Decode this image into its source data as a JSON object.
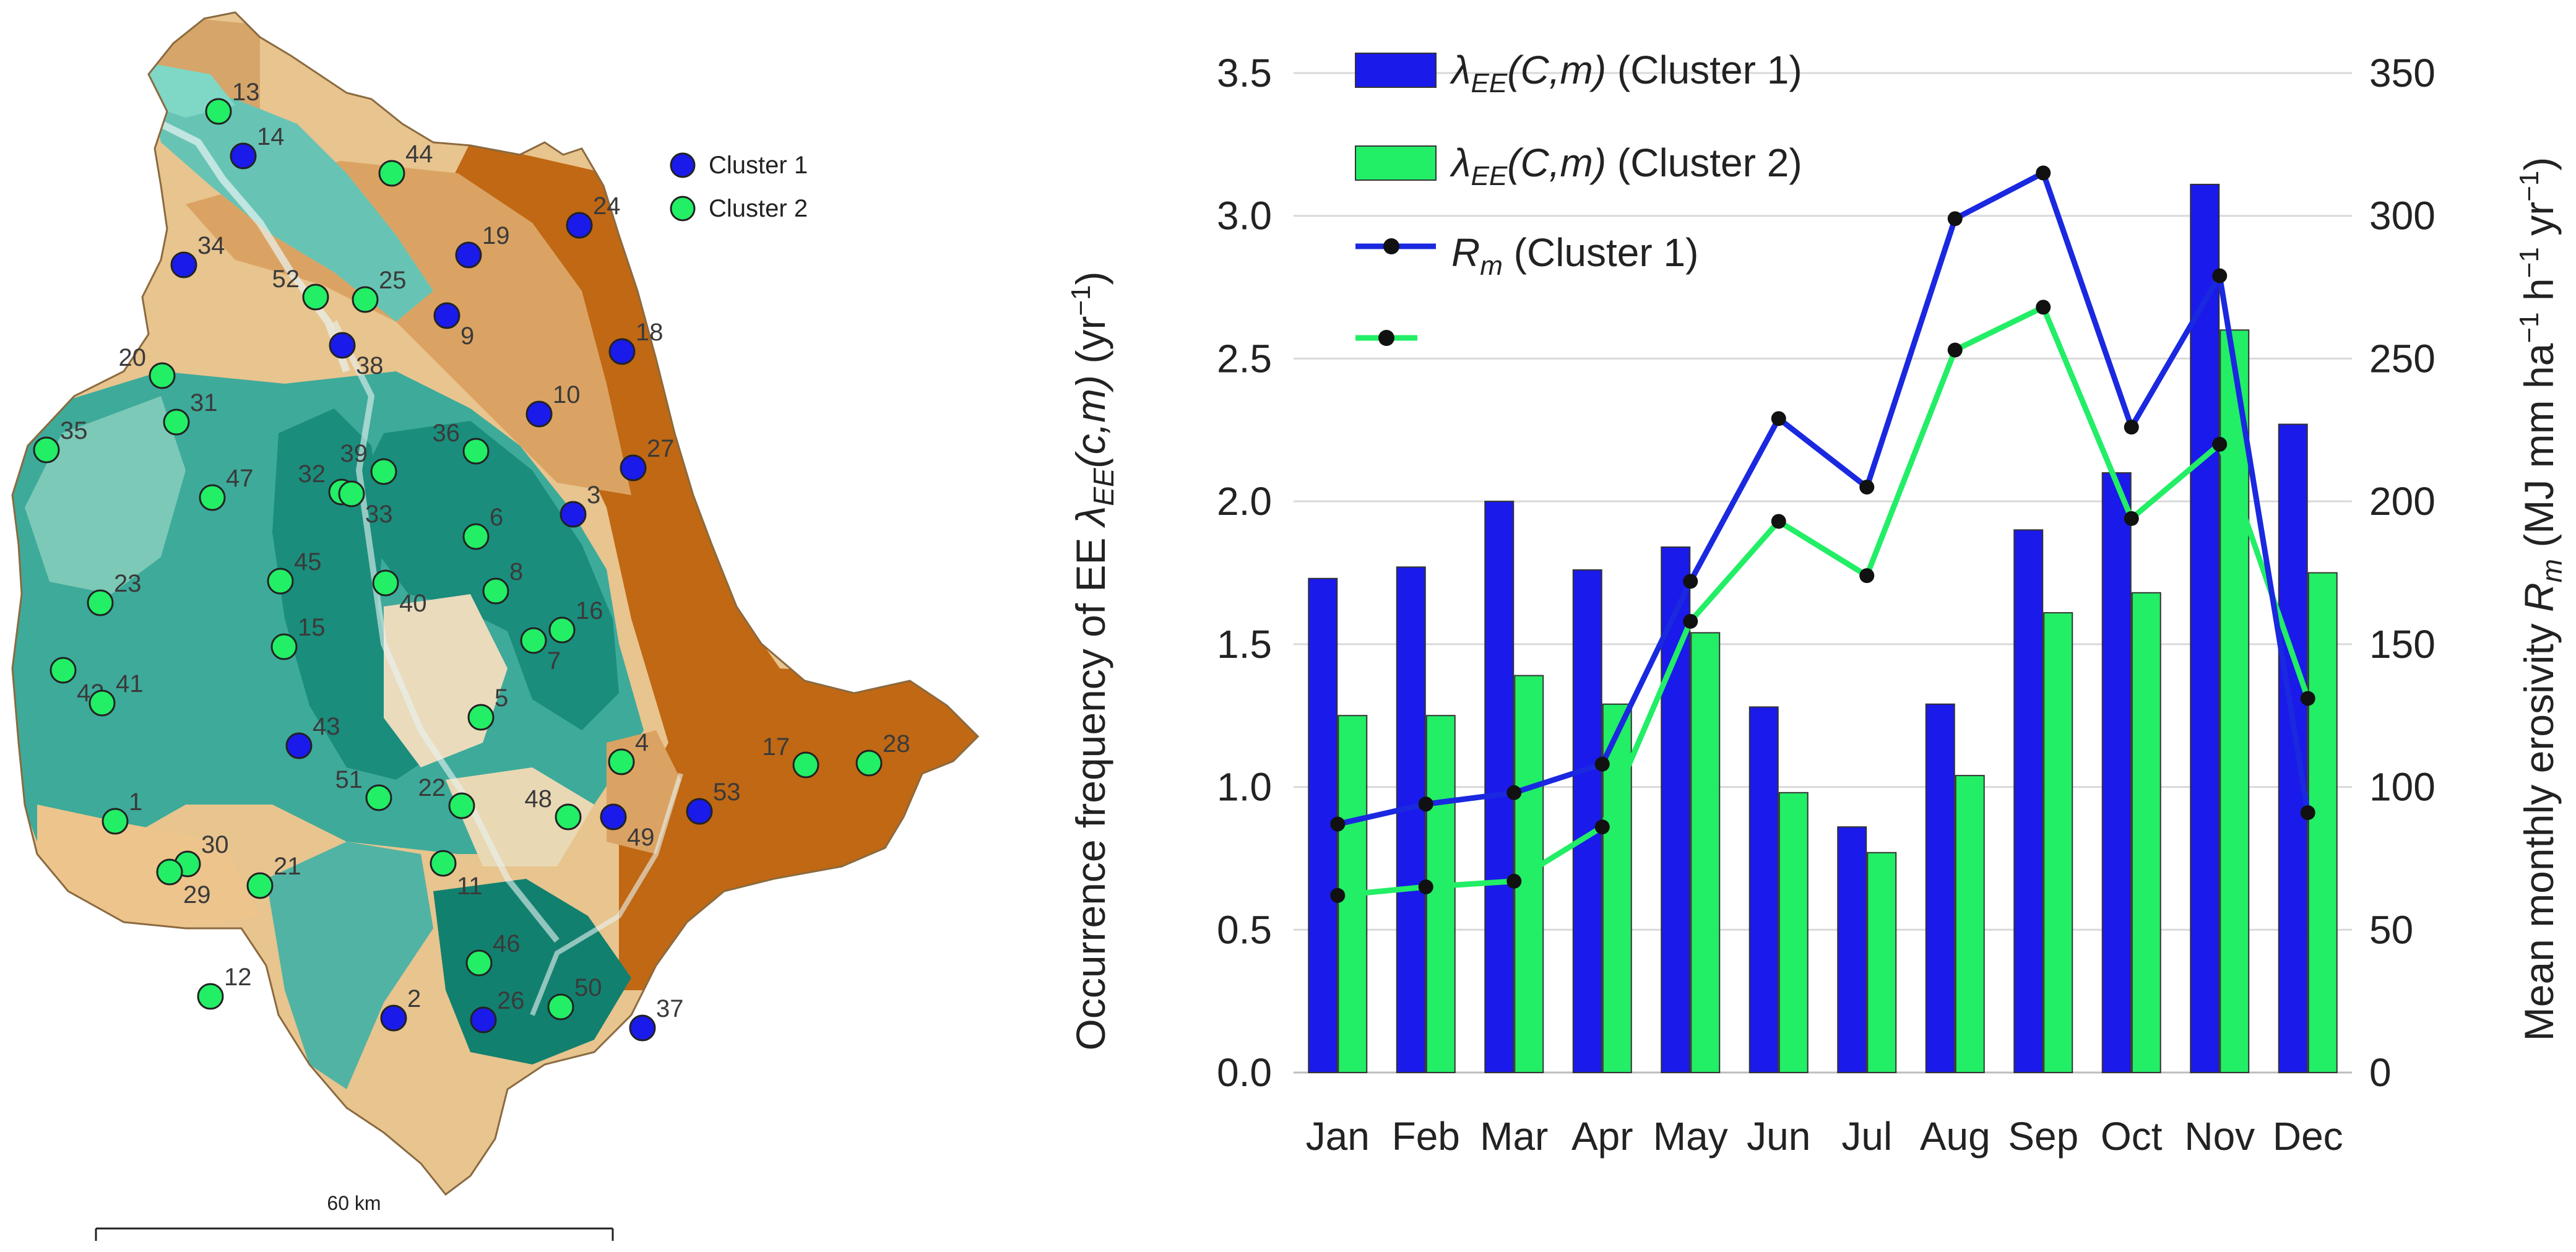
{
  "map": {
    "legend": [
      {
        "label": "Cluster 1",
        "color": "#1a1aeb"
      },
      {
        "label": "Cluster 2",
        "color": "#22ee66"
      }
    ],
    "scale_label": "60 km",
    "stations": [
      {
        "id": "13",
        "cluster": 2
      },
      {
        "id": "14",
        "cluster": 1
      },
      {
        "id": "44",
        "cluster": 2
      },
      {
        "id": "24",
        "cluster": 1
      },
      {
        "id": "19",
        "cluster": 1
      },
      {
        "id": "34",
        "cluster": 1
      },
      {
        "id": "52",
        "cluster": 2
      },
      {
        "id": "25",
        "cluster": 2
      },
      {
        "id": "9",
        "cluster": 1
      },
      {
        "id": "18",
        "cluster": 1
      },
      {
        "id": "38",
        "cluster": 1
      },
      {
        "id": "20",
        "cluster": 2
      },
      {
        "id": "31",
        "cluster": 2
      },
      {
        "id": "10",
        "cluster": 1
      },
      {
        "id": "35",
        "cluster": 2
      },
      {
        "id": "36",
        "cluster": 2
      },
      {
        "id": "27",
        "cluster": 1
      },
      {
        "id": "39",
        "cluster": 2
      },
      {
        "id": "47",
        "cluster": 2
      },
      {
        "id": "32",
        "cluster": 2
      },
      {
        "id": "3",
        "cluster": 1
      },
      {
        "id": "6",
        "cluster": 2
      },
      {
        "id": "33",
        "cluster": 2
      },
      {
        "id": "45",
        "cluster": 2
      },
      {
        "id": "23",
        "cluster": 2
      },
      {
        "id": "8",
        "cluster": 2
      },
      {
        "id": "16",
        "cluster": 2
      },
      {
        "id": "40",
        "cluster": 2
      },
      {
        "id": "15",
        "cluster": 2
      },
      {
        "id": "7",
        "cluster": 2
      },
      {
        "id": "42",
        "cluster": 2
      },
      {
        "id": "41",
        "cluster": 2
      },
      {
        "id": "5",
        "cluster": 2
      },
      {
        "id": "43",
        "cluster": 1
      },
      {
        "id": "4",
        "cluster": 2
      },
      {
        "id": "17",
        "cluster": 2
      },
      {
        "id": "28",
        "cluster": 2
      },
      {
        "id": "51",
        "cluster": 2
      },
      {
        "id": "22",
        "cluster": 2
      },
      {
        "id": "48",
        "cluster": 2
      },
      {
        "id": "53",
        "cluster": 1
      },
      {
        "id": "1",
        "cluster": 2
      },
      {
        "id": "49",
        "cluster": 1
      },
      {
        "id": "30",
        "cluster": 2
      },
      {
        "id": "21",
        "cluster": 2
      },
      {
        "id": "11",
        "cluster": 2
      },
      {
        "id": "29",
        "cluster": 2
      },
      {
        "id": "46",
        "cluster": 2
      },
      {
        "id": "12",
        "cluster": 2
      },
      {
        "id": "50",
        "cluster": 2
      },
      {
        "id": "2",
        "cluster": 1
      },
      {
        "id": "26",
        "cluster": 1
      },
      {
        "id": "37",
        "cluster": 1
      }
    ]
  },
  "chart_data": {
    "type": "bar",
    "categories": [
      "Jan",
      "Feb",
      "Mar",
      "Apr",
      "May",
      "Jun",
      "Jul",
      "Aug",
      "Sep",
      "Oct",
      "Nov",
      "Dec"
    ],
    "series": [
      {
        "name": "λEE(C,m) (Cluster 1)",
        "kind": "bar",
        "axis": "left",
        "color": "#1a1aeb",
        "values": [
          1.73,
          1.77,
          2.0,
          1.76,
          1.84,
          1.28,
          0.86,
          1.29,
          1.9,
          2.1,
          3.11,
          2.27
        ]
      },
      {
        "name": "λEE(C,m) (Cluster 2)",
        "kind": "bar",
        "axis": "left",
        "color": "#22ee66",
        "values": [
          1.25,
          1.25,
          1.39,
          1.29,
          1.54,
          0.98,
          0.77,
          1.04,
          1.61,
          1.68,
          2.6,
          1.75
        ]
      },
      {
        "name": "Rm (Cluster 1)",
        "kind": "line",
        "axis": "right",
        "color": "#1a28e0",
        "values": [
          87,
          94,
          98,
          108,
          172,
          229,
          205,
          299,
          315,
          226,
          279,
          91
        ]
      },
      {
        "name": "",
        "kind": "line",
        "axis": "right",
        "color": "#22ee66",
        "values": [
          62,
          65,
          67,
          86,
          158,
          193,
          174,
          253,
          268,
          194,
          220,
          131
        ]
      }
    ],
    "legend": [
      {
        "symbol": "λ",
        "sub": "EE",
        "rest": "(C,m)",
        "label": "(Cluster 1)"
      },
      {
        "symbol": "λ",
        "sub": "EE",
        "rest": "(C,m)",
        "label": "(Cluster 2)"
      },
      {
        "symbol": "R",
        "sub": "m",
        "rest": "",
        "label": "(Cluster 1)"
      },
      {
        "symbol": "",
        "sub": "",
        "rest": "",
        "label": ""
      }
    ],
    "y_left": {
      "label_prefix": "Occurrence frequency of EE",
      "label_symbol": "λ",
      "label_sub": "EE",
      "label_args": "(c,m)",
      "label_unit": "(yr",
      "label_unit_sup": "−1",
      "label_unit_end": ")",
      "min": 0,
      "max": 3.5,
      "ticks": [
        "0.0",
        "0.5",
        "1.0",
        "1.5",
        "2.0",
        "2.5",
        "3.0",
        "3.5"
      ]
    },
    "y_right": {
      "label_prefix": "Mean monthly erosivity",
      "label_symbol": "R",
      "label_sub": "m",
      "label_unit": "(MJ mm ha",
      "label_unit_sup1": "−1",
      "label_unit_mid": " h",
      "label_unit_sup2": "−1",
      "label_unit_mid2": " yr",
      "label_unit_sup3": "−1",
      "label_unit_end": ")",
      "min": 0,
      "max": 350,
      "ticks": [
        "0",
        "50",
        "100",
        "150",
        "200",
        "250",
        "300",
        "350"
      ]
    },
    "grid": true
  }
}
